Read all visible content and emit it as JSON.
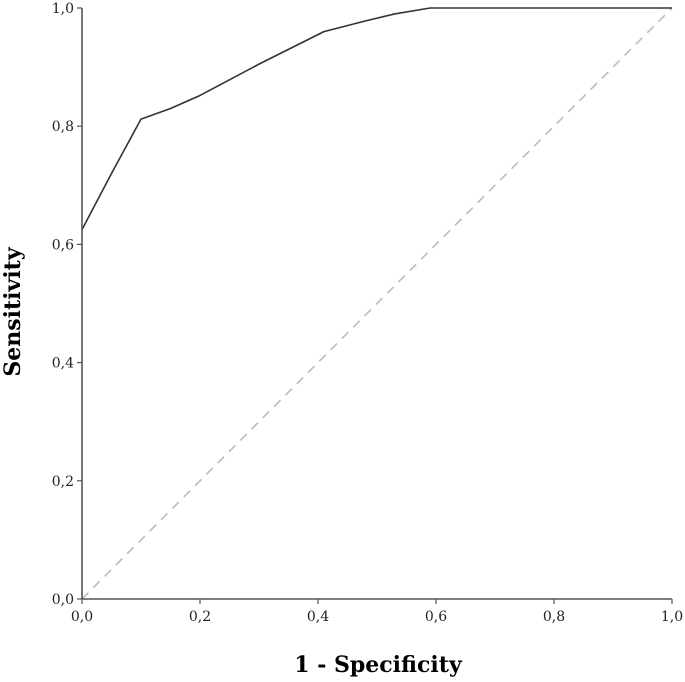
{
  "chart_data": {
    "type": "line",
    "title": "",
    "xlabel": "1 - Specificity",
    "ylabel": "Sensitivity",
    "xlim": [
      0,
      1
    ],
    "ylim": [
      0,
      1
    ],
    "x_ticks": [
      "0,0",
      "0,2",
      "0,4",
      "0,6",
      "0,8",
      "1,0"
    ],
    "y_ticks": [
      "0,0",
      "0,2",
      "0,4",
      "0,6",
      "0,8",
      "1,0"
    ],
    "grid": false,
    "legend": "none",
    "series": [
      {
        "role": "roc-curve",
        "color": "#333333",
        "style": "solid",
        "x": [
          0.0,
          0.05,
          0.1,
          0.15,
          0.2,
          0.3,
          0.41,
          0.48,
          0.53,
          0.59,
          0.75,
          1.0
        ],
        "y": [
          0.625,
          0.72,
          0.812,
          0.83,
          0.852,
          0.905,
          0.96,
          0.978,
          0.99,
          1.0,
          1.0,
          1.0
        ]
      },
      {
        "role": "reference-line",
        "color": "#bbbbbb",
        "style": "dashed",
        "x": [
          0.0,
          1.0
        ],
        "y": [
          0.0,
          1.0
        ]
      }
    ]
  }
}
